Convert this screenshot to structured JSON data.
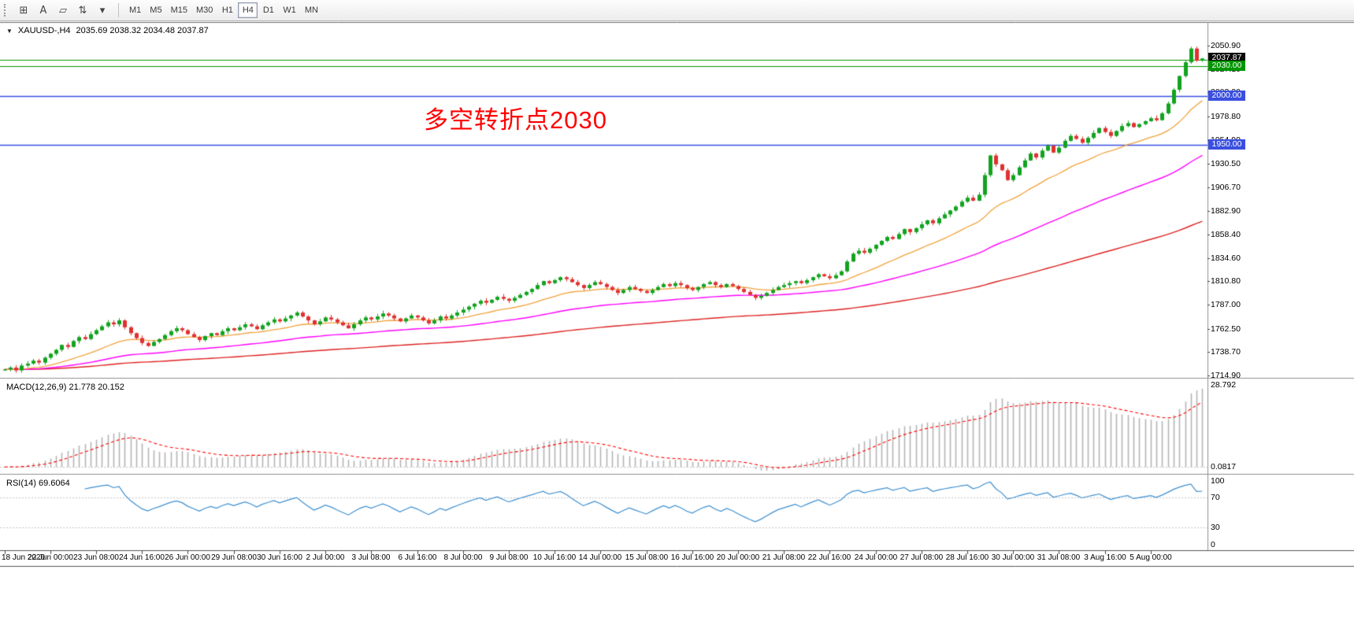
{
  "colors": {
    "up": "#12a31f",
    "down": "#e03131",
    "ma_fast": "#f0a23c",
    "ma_mid": "#ff00ff",
    "ma_slow": "#dd2222",
    "level_green": "#009600",
    "level_blue": "#3a4fe0",
    "macd_hist": "#b4b4b4",
    "macd_signal": "#ff0000",
    "rsi_line": "#3e8fd0",
    "annotation": "#ff0000",
    "tag_current_bg": "#0a0a0a",
    "tag_green_bg": "#009600",
    "tag_blue_bg": "#3a4fe0"
  },
  "icons": {
    "header_collapse": "▼"
  },
  "toolbar": {
    "tools": [
      {
        "name": "charts-grid-tool",
        "glyph": "⊞"
      },
      {
        "name": "text-tool",
        "glyph": "A"
      },
      {
        "name": "shapes-tool",
        "glyph": "▱"
      },
      {
        "name": "arrows-tool",
        "glyph": "⇅"
      },
      {
        "name": "tools-dropdown",
        "glyph": "▾"
      }
    ],
    "timeframes": [
      "M1",
      "M5",
      "M15",
      "M30",
      "H1",
      "H4",
      "D1",
      "W1",
      "MN"
    ],
    "active_timeframe": "H4"
  },
  "chart": {
    "symbol_label": "XAUUSD-,H4",
    "ohlc_text": "2035.69 2038.32 2034.48 2037.87",
    "annotation": "多空转折点2030",
    "last_ohlc": [
      2035.69,
      2038.32,
      2034.48,
      2037.87
    ],
    "ma_periods": {
      "fast": 20,
      "mid": 60,
      "slow": 150
    },
    "price_axis": {
      "ticks": [
        "2050.90",
        "2027.10",
        "2003.30",
        "1978.80",
        "1954.90",
        "1930.50",
        "1906.70",
        "1882.90",
        "1858.40",
        "1834.60",
        "1810.80",
        "1787.00",
        "1762.50",
        "1738.70",
        "1714.90"
      ]
    },
    "tags": [
      {
        "text": "2037.87",
        "price": 2037.87,
        "kind": "current"
      },
      {
        "text": "2030.00",
        "price": 2030.0,
        "kind": "green"
      },
      {
        "text": "2000.00",
        "price": 2000.0,
        "kind": "blue"
      },
      {
        "text": "1950.00",
        "price": 1950.0,
        "kind": "blue"
      }
    ],
    "levels": [
      {
        "price": 2036.5,
        "color": "green"
      },
      {
        "price": 2030.0,
        "color": "green"
      },
      {
        "price": 2000.0,
        "color": "blue"
      },
      {
        "price": 1950.0,
        "color": "blue"
      }
    ],
    "closes": [
      1721,
      1723,
      1720,
      1725,
      1727,
      1730,
      1728,
      1733,
      1737,
      1741,
      1746,
      1744,
      1750,
      1754,
      1752,
      1757,
      1761,
      1765,
      1769,
      1767,
      1771,
      1764,
      1758,
      1753,
      1748,
      1745,
      1749,
      1752,
      1756,
      1760,
      1763,
      1761,
      1757,
      1754,
      1751,
      1755,
      1758,
      1756,
      1760,
      1763,
      1761,
      1764,
      1767,
      1765,
      1762,
      1766,
      1769,
      1772,
      1770,
      1773,
      1776,
      1779,
      1775,
      1771,
      1767,
      1770,
      1774,
      1772,
      1769,
      1766,
      1763,
      1767,
      1771,
      1774,
      1772,
      1775,
      1778,
      1776,
      1773,
      1770,
      1773,
      1776,
      1774,
      1771,
      1768,
      1771,
      1775,
      1773,
      1776,
      1779,
      1782,
      1785,
      1788,
      1791,
      1789,
      1792,
      1795,
      1793,
      1791,
      1794,
      1797,
      1800,
      1803,
      1807,
      1811,
      1809,
      1812,
      1815,
      1813,
      1810,
      1807,
      1804,
      1807,
      1810,
      1808,
      1805,
      1802,
      1799,
      1802,
      1805,
      1803,
      1801,
      1799,
      1802,
      1805,
      1808,
      1806,
      1809,
      1807,
      1804,
      1802,
      1805,
      1808,
      1810,
      1807,
      1805,
      1808,
      1806,
      1803,
      1800,
      1797,
      1794,
      1796,
      1799,
      1802,
      1805,
      1807,
      1809,
      1811,
      1809,
      1812,
      1815,
      1818,
      1816,
      1814,
      1817,
      1821,
      1831,
      1839,
      1842,
      1840,
      1844,
      1848,
      1852,
      1856,
      1854,
      1859,
      1864,
      1861,
      1865,
      1869,
      1873,
      1870,
      1875,
      1879,
      1883,
      1887,
      1892,
      1896,
      1893,
      1899,
      1919,
      1939,
      1930,
      1924,
      1914,
      1919,
      1927,
      1934,
      1941,
      1937,
      1944,
      1949,
      1942,
      1947,
      1954,
      1959,
      1956,
      1952,
      1957,
      1962,
      1967,
      1963,
      1959,
      1964,
      1969,
      1972,
      1968,
      1971,
      1974,
      1977,
      1975,
      1982,
      1992,
      2006,
      2020,
      2034,
      2048,
      2035.69,
      2037.87
    ]
  },
  "macd": {
    "label": "MACD(12,26,9) 21.778 20.152",
    "params": [
      12,
      26,
      9
    ],
    "values": [
      "21.778",
      "20.152"
    ],
    "scale": [
      "28.792",
      "0.0817"
    ]
  },
  "rsi": {
    "label": "RSI(14) 69.6064",
    "period": 14,
    "value": "69.6064",
    "scale": [
      "100",
      "70",
      "30",
      "0"
    ],
    "levels": [
      70,
      30
    ]
  },
  "time_axis": [
    "18 Jun 2020",
    "22 Jun 00:00",
    "23 Jun 08:00",
    "24 Jun 16:00",
    "26 Jun 00:00",
    "29 Jun 08:00",
    "30 Jun 16:00",
    "2 Jul 00:00",
    "3 Jul 08:00",
    "6 Jul 16:00",
    "8 Jul 00:00",
    "9 Jul 08:00",
    "10 Jul 16:00",
    "14 Jul 00:00",
    "15 Jul 08:00",
    "16 Jul 16:00",
    "20 Jul 00:00",
    "21 Jul 08:00",
    "22 Jul 16:00",
    "24 Jul 00:00",
    "27 Jul 08:00",
    "28 Jul 16:00",
    "30 Jul 00:00",
    "31 Jul 08:00",
    "3 Aug 16:00",
    "5 Aug 00:00"
  ]
}
